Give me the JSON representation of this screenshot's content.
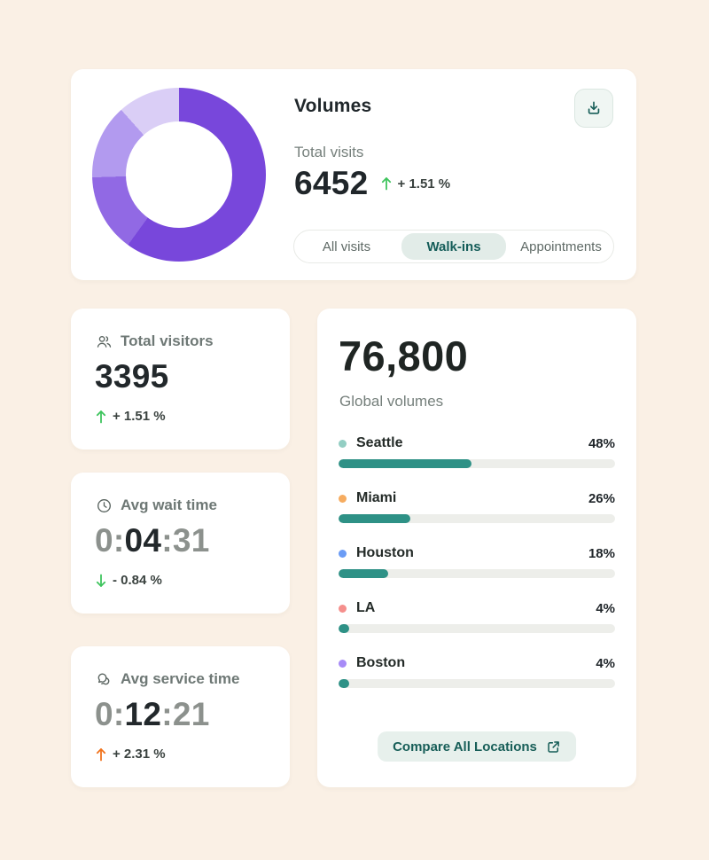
{
  "page": {
    "background": "#FAF0E5"
  },
  "volumes_card": {
    "title": "Volumes",
    "subtitle": "Total visits",
    "value": "6452",
    "delta": {
      "label": "+ 1.51 %",
      "direction": "up",
      "tone": "green"
    },
    "download_icon": "download-icon",
    "tabs": [
      {
        "label": "All visits",
        "selected": false
      },
      {
        "label": "Walk-ins",
        "selected": true
      },
      {
        "label": "Appointments",
        "selected": false
      }
    ]
  },
  "stat_cards": [
    {
      "icon": "users-icon",
      "label": "Total visitors",
      "value": {
        "dim_start": "",
        "main": "3395",
        "dim_end": ""
      },
      "delta": {
        "label": "+ 1.51 %",
        "direction": "up",
        "tone": "green"
      }
    },
    {
      "icon": "clock-icon",
      "label": "Avg wait time",
      "value": {
        "dim_start": "0:",
        "main": "04",
        "dim_end": ":31"
      },
      "delta": {
        "label": "- 0.84 %",
        "direction": "down",
        "tone": "green"
      }
    },
    {
      "icon": "chat-bubbles-icon",
      "label": "Avg service time",
      "value": {
        "dim_start": "0:",
        "main": "12",
        "dim_end": ":21"
      },
      "delta": {
        "label": "+ 2.31 %",
        "direction": "up",
        "tone": "orange"
      }
    }
  ],
  "global_card": {
    "value": "76,800",
    "label": "Global volumes",
    "locations": [
      {
        "name": "Seattle",
        "pct": 48,
        "pct_label": "48%",
        "dot_color": "#93CEC3"
      },
      {
        "name": "Miami",
        "pct": 26,
        "pct_label": "26%",
        "dot_color": "#F6AC60"
      },
      {
        "name": "Houston",
        "pct": 18,
        "pct_label": "18%",
        "dot_color": "#6B9CF5"
      },
      {
        "name": "LA",
        "pct": 4,
        "pct_label": "4%",
        "dot_color": "#F58F8C"
      },
      {
        "name": "Boston",
        "pct": 4,
        "pct_label": "4%",
        "dot_color": "#A78BF7"
      }
    ],
    "button_label": "Compare All Locations",
    "bar_fill_color": "#2E9186",
    "bar_track_color": "#EDEEEA"
  },
  "chart_data": [
    {
      "type": "pie",
      "variant": "donut",
      "title": "Volumes",
      "total_label": "Total visits",
      "total_value": 6452,
      "delta_percent": 1.51,
      "segments": [
        {
          "pct": 60,
          "color": "#7847DB"
        },
        {
          "pct": 14.5,
          "color": "#9169E4"
        },
        {
          "pct": 13.9,
          "color": "#B29AEF"
        },
        {
          "pct": 11.6,
          "color": "#DACEF6"
        }
      ],
      "legend": "none",
      "labels_shown": false
    },
    {
      "type": "bar",
      "orientation": "horizontal",
      "title": "Global volumes",
      "total_value": 76800,
      "categories": [
        "Seattle",
        "Miami",
        "Houston",
        "LA",
        "Boston"
      ],
      "values": [
        48,
        26,
        18,
        4,
        4
      ],
      "unit": "%",
      "xlim": [
        0,
        100
      ],
      "grid": false,
      "legend": "none"
    }
  ]
}
